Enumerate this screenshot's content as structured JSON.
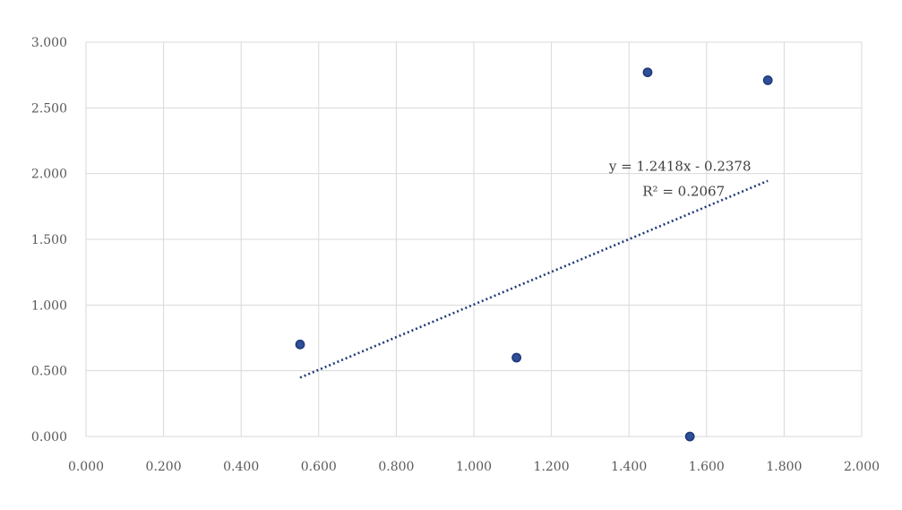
{
  "chart_data": {
    "type": "scatter",
    "title": "",
    "xlabel": "",
    "ylabel": "",
    "xlim": [
      0,
      2
    ],
    "ylim": [
      0,
      3
    ],
    "x_ticks": [
      "0.000",
      "0.200",
      "0.400",
      "0.600",
      "0.800",
      "1.000",
      "1.200",
      "1.400",
      "1.600",
      "1.800",
      "2.000"
    ],
    "y_ticks": [
      "0.000",
      "0.500",
      "1.000",
      "1.500",
      "2.000",
      "2.500",
      "3.000"
    ],
    "grid": true,
    "series": [
      {
        "marker_color": "#2f4f98",
        "marker_edge": "#1f3a7a",
        "points": [
          {
            "x": 0.552,
            "y": 0.7
          },
          {
            "x": 1.11,
            "y": 0.6
          },
          {
            "x": 1.448,
            "y": 2.77
          },
          {
            "x": 1.557,
            "y": 0.0
          },
          {
            "x": 1.758,
            "y": 2.71
          }
        ]
      }
    ],
    "trendline": {
      "type": "linear",
      "slope": 1.2418,
      "intercept": -0.2378,
      "x_from": 0.552,
      "x_to": 1.758,
      "color": "#1f3a7a",
      "equation": "y = 1.2418x - 0.2378",
      "r_squared": "R² = 0.2067"
    },
    "colors": {
      "grid": "#d9d9d9",
      "text": "#595959"
    }
  }
}
